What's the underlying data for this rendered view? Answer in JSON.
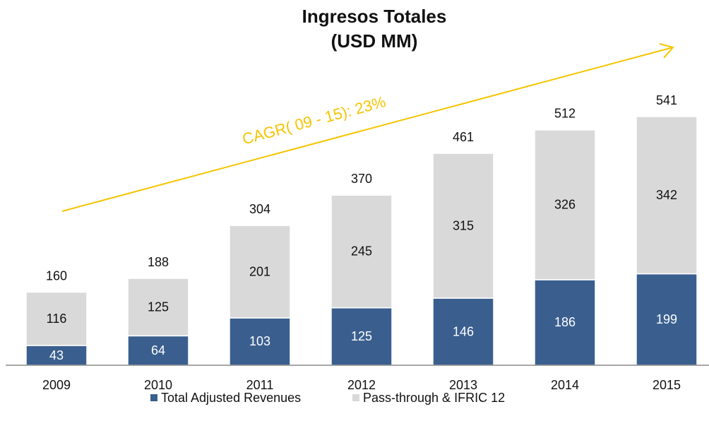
{
  "chart_data": {
    "type": "stacked_bar",
    "title": [
      "Ingresos Totales",
      "(USD MM)"
    ],
    "annotation": "CAGR( 09 - 15): 23%",
    "categories": [
      "2009",
      "2010",
      "2011",
      "2012",
      "2013",
      "2014",
      "2015"
    ],
    "series": [
      {
        "name": "Total Adjusted Revenues",
        "color": "#3a5f8f",
        "values": [
          43,
          64,
          103,
          125,
          146,
          186,
          199
        ]
      },
      {
        "name": "Pass-through & IFRIC 12",
        "color": "#d9d9d9",
        "values": [
          116,
          125,
          201,
          245,
          315,
          326,
          342
        ]
      }
    ],
    "totals": [
      160,
      188,
      304,
      370,
      461,
      512,
      541
    ],
    "annotation_color": "#f5c400",
    "legend": "bottom"
  }
}
